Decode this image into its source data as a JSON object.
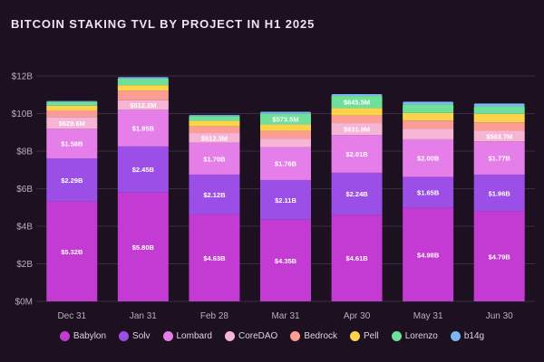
{
  "title": "BITCOIN STAKING TVL BY PROJECT IN H1 2025",
  "colors": {
    "background": "#1c1021",
    "grid": "#3a2c42",
    "axis_text": "#b8aec0",
    "label_text": "#ffffff"
  },
  "chart_data": {
    "type": "bar",
    "stacked": true,
    "title": "BITCOIN STAKING TVL BY PROJECT IN H1 2025",
    "xlabel": "",
    "ylabel": "",
    "ylim": [
      0,
      12
    ],
    "yticks": [
      0,
      2,
      4,
      6,
      8,
      10,
      12
    ],
    "ytick_labels": [
      "$0M",
      "$2B",
      "$4B",
      "$6B",
      "$8B",
      "$10B",
      "$12B"
    ],
    "grid": true,
    "legend_position": "bottom",
    "categories": [
      "Dec 31",
      "Jan 31",
      "Feb 28",
      "Mar 31",
      "Apr 30",
      "May 31",
      "Jun 30"
    ],
    "series": [
      {
        "name": "Babylon",
        "color": "#c33bd2",
        "values": [
          5.32,
          5.8,
          4.63,
          4.35,
          4.61,
          4.98,
          4.79
        ],
        "labels": [
          "$5.32B",
          "$5.80B",
          "$4.63B",
          "$4.35B",
          "$4.61B",
          "$4.98B",
          "$4.79B"
        ]
      },
      {
        "name": "Solv",
        "color": "#9b4fe6",
        "values": [
          2.29,
          2.45,
          2.12,
          2.11,
          2.24,
          1.65,
          1.96
        ],
        "labels": [
          "$2.29B",
          "$2.45B",
          "$2.12B",
          "$2.11B",
          "$2.24B",
          "$1.65B",
          "$1.96B"
        ]
      },
      {
        "name": "Lombard",
        "color": "#e57ee8",
        "values": [
          1.58,
          1.95,
          1.7,
          1.76,
          2.01,
          2.0,
          1.77
        ],
        "labels": [
          "$1.58B",
          "$1.95B",
          "$1.70B",
          "$1.76B",
          "$2.01B",
          "$2.00B",
          "$1.77B"
        ]
      },
      {
        "name": "CoreDAO",
        "color": "#f7b5d6",
        "values": [
          0.6296,
          0.5122,
          0.5123,
          0.45,
          0.6319,
          0.55,
          0.5637
        ],
        "labels": [
          "$629.6M",
          "$512.2M",
          "$512.3M",
          "",
          "$631.9M",
          "",
          "$563.7M"
        ]
      },
      {
        "name": "Bedrock",
        "color": "#fb9d94",
        "values": [
          0.35,
          0.5,
          0.35,
          0.4,
          0.4,
          0.45,
          0.45
        ],
        "labels": [
          "",
          "",
          "",
          "",
          "",
          "",
          ""
        ]
      },
      {
        "name": "Pell",
        "color": "#fcd34a",
        "values": [
          0.25,
          0.3,
          0.3,
          0.35,
          0.4,
          0.4,
          0.45
        ],
        "labels": [
          "",
          "",
          "",
          "",
          "",
          "",
          ""
        ]
      },
      {
        "name": "Lorenzo",
        "color": "#6ee09a",
        "values": [
          0.2,
          0.35,
          0.25,
          0.5735,
          0.6455,
          0.45,
          0.4
        ],
        "labels": [
          "",
          "",
          "",
          "$573.5M",
          "$645.5M",
          "",
          ""
        ]
      },
      {
        "name": "b14g",
        "color": "#7ab8ef",
        "values": [
          0.05,
          0.08,
          0.06,
          0.1,
          0.1,
          0.15,
          0.15
        ],
        "labels": [
          "",
          "",
          "",
          "",
          "",
          "",
          ""
        ]
      }
    ]
  }
}
